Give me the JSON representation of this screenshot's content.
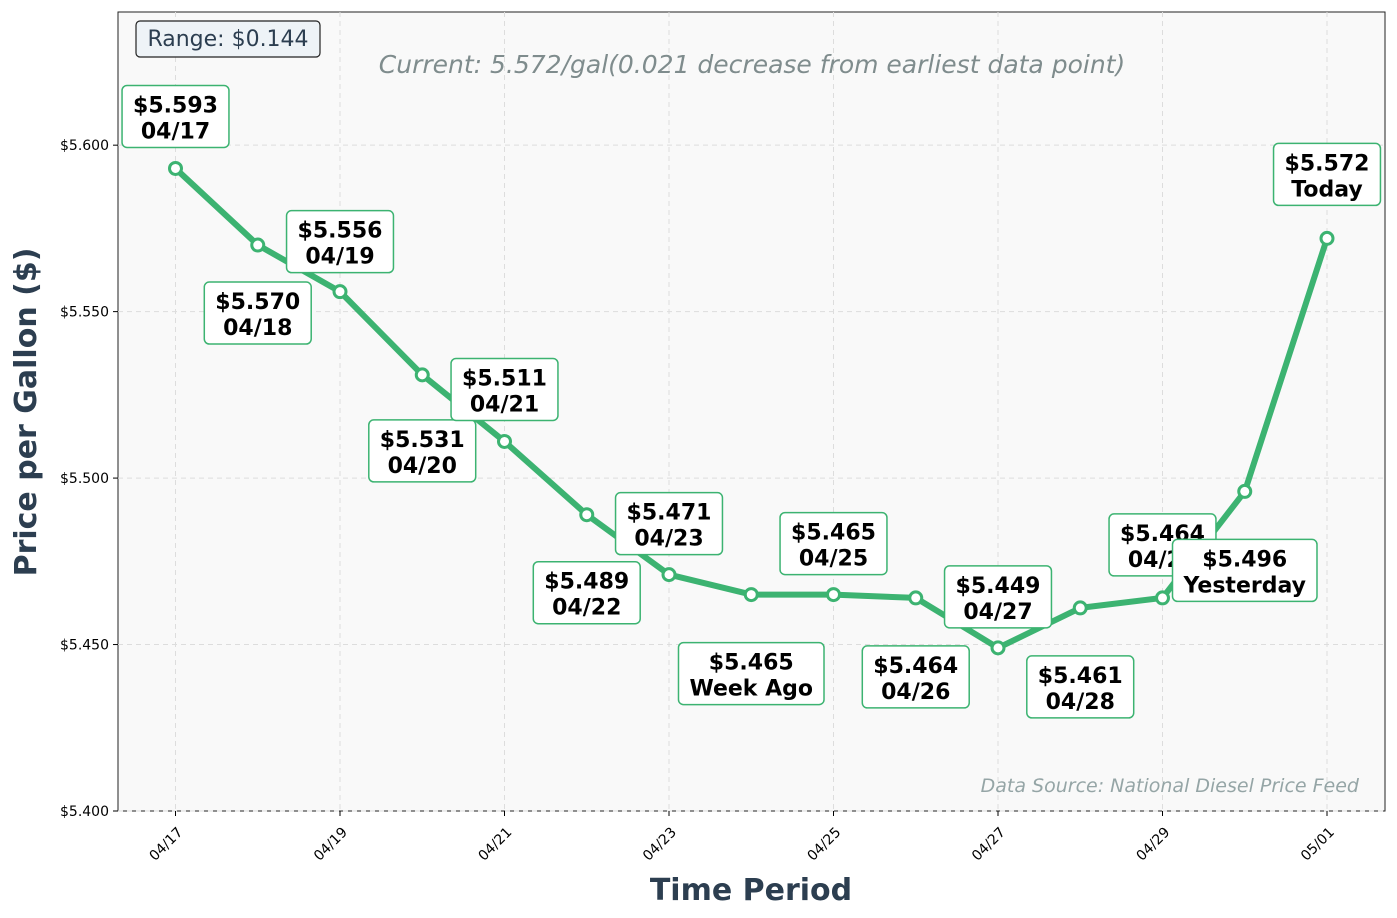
{
  "chart_data": {
    "type": "line",
    "title": "",
    "subtitle": "Current: 5.572/gal(0.021 decrease from earliest data point)",
    "xlabel": "Time Period",
    "ylabel": "Price per Gallon ($)",
    "source_note": "Data Source: National Diesel Price Feed",
    "range_note": "Range: $0.144",
    "ylim": [
      5.4,
      5.64
    ],
    "yticks": [
      5.4,
      5.45,
      5.5,
      5.55,
      5.6
    ],
    "ytick_labels": [
      "$5.400",
      "$5.450",
      "$5.500",
      "$5.550",
      "$5.600"
    ],
    "xticks": [
      "04/17",
      "04/19",
      "04/21",
      "04/23",
      "04/25",
      "04/27",
      "04/29",
      "05/01"
    ],
    "grid": true,
    "series": [
      {
        "color": "#3cb371",
        "points": [
          {
            "x": "04/17",
            "y": 5.593,
            "label": "04/17"
          },
          {
            "x": "04/18",
            "y": 5.57,
            "label": "04/18"
          },
          {
            "x": "04/19",
            "y": 5.556,
            "label": "04/19"
          },
          {
            "x": "04/20",
            "y": 5.531,
            "label": "04/20"
          },
          {
            "x": "04/21",
            "y": 5.511,
            "label": "04/21"
          },
          {
            "x": "04/22",
            "y": 5.489,
            "label": "04/22"
          },
          {
            "x": "04/23",
            "y": 5.471,
            "label": "04/23"
          },
          {
            "x": "04/24",
            "y": 5.465,
            "label": "Week Ago"
          },
          {
            "x": "04/25",
            "y": 5.465,
            "label": "04/25"
          },
          {
            "x": "04/26",
            "y": 5.464,
            "label": "04/26"
          },
          {
            "x": "04/27",
            "y": 5.449,
            "label": "04/27"
          },
          {
            "x": "04/28",
            "y": 5.461,
            "label": "04/28"
          },
          {
            "x": "04/29",
            "y": 5.464,
            "label": "04/29"
          },
          {
            "x": "04/30",
            "y": 5.496,
            "label": "Yesterday"
          },
          {
            "x": "05/01",
            "y": 5.572,
            "label": "Today"
          }
        ]
      }
    ]
  }
}
